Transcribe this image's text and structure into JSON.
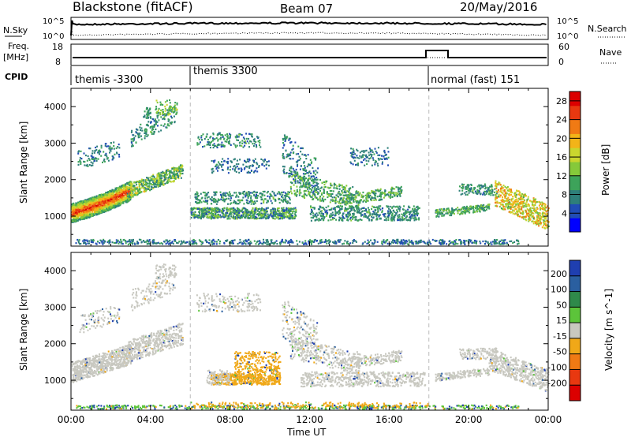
{
  "header": {
    "title": "Blackstone (fitACF)",
    "beam": "Beam 07",
    "date": "20/May/2016"
  },
  "top_panels": {
    "nsky_label": "N.Sky",
    "nsearch_label": "N.Search",
    "nsky_ticks": [
      "10^5",
      "10^0"
    ],
    "freq_label_line1": "Freq.",
    "freq_label_line2": "[MHz]",
    "freq_ticks": [
      "18",
      "8"
    ],
    "nave_label": "Nave",
    "nave_ticks": [
      "60",
      "0"
    ],
    "cpid_label": "CPID"
  },
  "cpid_segments": [
    {
      "label": "themis -3300",
      "start_hour": 0.0
    },
    {
      "label": "themis 3300",
      "start_hour": 6.0
    },
    {
      "label": "normal (fast) 151",
      "start_hour": 18.0
    }
  ],
  "chart_data": [
    {
      "type": "heatmap",
      "ylabel": "Slant Range [km]",
      "xlabel": "",
      "xlim_hours": [
        0,
        24
      ],
      "ylim_km": [
        180,
        4500
      ],
      "y_ticks": [
        "1000",
        "2000",
        "3000",
        "4000"
      ],
      "colorbar": {
        "label": "Power [dB]",
        "ticks": [
          "4",
          "8",
          "12",
          "16",
          "20",
          "24",
          "28"
        ],
        "range": [
          0,
          30
        ],
        "colors": [
          "#0000ff",
          "#214db5",
          "#2e7f7a",
          "#3da35a",
          "#86c93a",
          "#c9d62e",
          "#f2b418",
          "#f07a14",
          "#e83810",
          "#dc0000"
        ]
      },
      "features": [
        {
          "hours": [
            0.0,
            2.8
          ],
          "range_km": [
            1000,
            1600
          ],
          "power_db": 24
        },
        {
          "hours": [
            2.8,
            5.5
          ],
          "range_km": [
            1600,
            2200
          ],
          "power_db": 10
        },
        {
          "hours": [
            6.0,
            11.5
          ],
          "range_km": [
            900,
            1300
          ],
          "power_db": 8
        },
        {
          "hours": [
            10.5,
            16.5
          ],
          "range_km": [
            1200,
            2400
          ],
          "power_db": 8
        },
        {
          "hours": [
            21.5,
            24.0
          ],
          "range_km": [
            1300,
            2000
          ],
          "power_db": 20
        }
      ]
    },
    {
      "type": "heatmap",
      "ylabel": "Slant Range [km]",
      "xlabel": "Time UT",
      "xlim_hours": [
        0,
        24
      ],
      "x_ticks": [
        "00:00",
        "04:00",
        "08:00",
        "12:00",
        "16:00",
        "20:00",
        "00:00"
      ],
      "ylim_km": [
        180,
        4500
      ],
      "y_ticks": [
        "1000",
        "2000",
        "3000",
        "4000"
      ],
      "colorbar": {
        "label": "Velocity [m s^-1]",
        "ticks": [
          "200",
          "100",
          "50",
          "15",
          "-15",
          "-50",
          "-100",
          "-200"
        ],
        "colors": [
          "#1f3fb0",
          "#2a5fa0",
          "#2f8a4a",
          "#5cc43a",
          "#c8c8c0",
          "#f0a818",
          "#f07a14",
          "#e83810",
          "#dc0000"
        ]
      },
      "features": [
        {
          "hours": [
            0.0,
            5.5
          ],
          "range_km": [
            1000,
            2300
          ],
          "velocity_ms": 0
        },
        {
          "hours": [
            7.0,
            10.5
          ],
          "range_km": [
            900,
            1800
          ],
          "velocity_ms": -40
        },
        {
          "hours": [
            11.5,
            18.0
          ],
          "range_km": [
            800,
            1300
          ],
          "velocity_ms": 0
        },
        {
          "hours": [
            21.0,
            24.0
          ],
          "range_km": [
            1300,
            1900
          ],
          "velocity_ms": 0
        }
      ]
    }
  ]
}
